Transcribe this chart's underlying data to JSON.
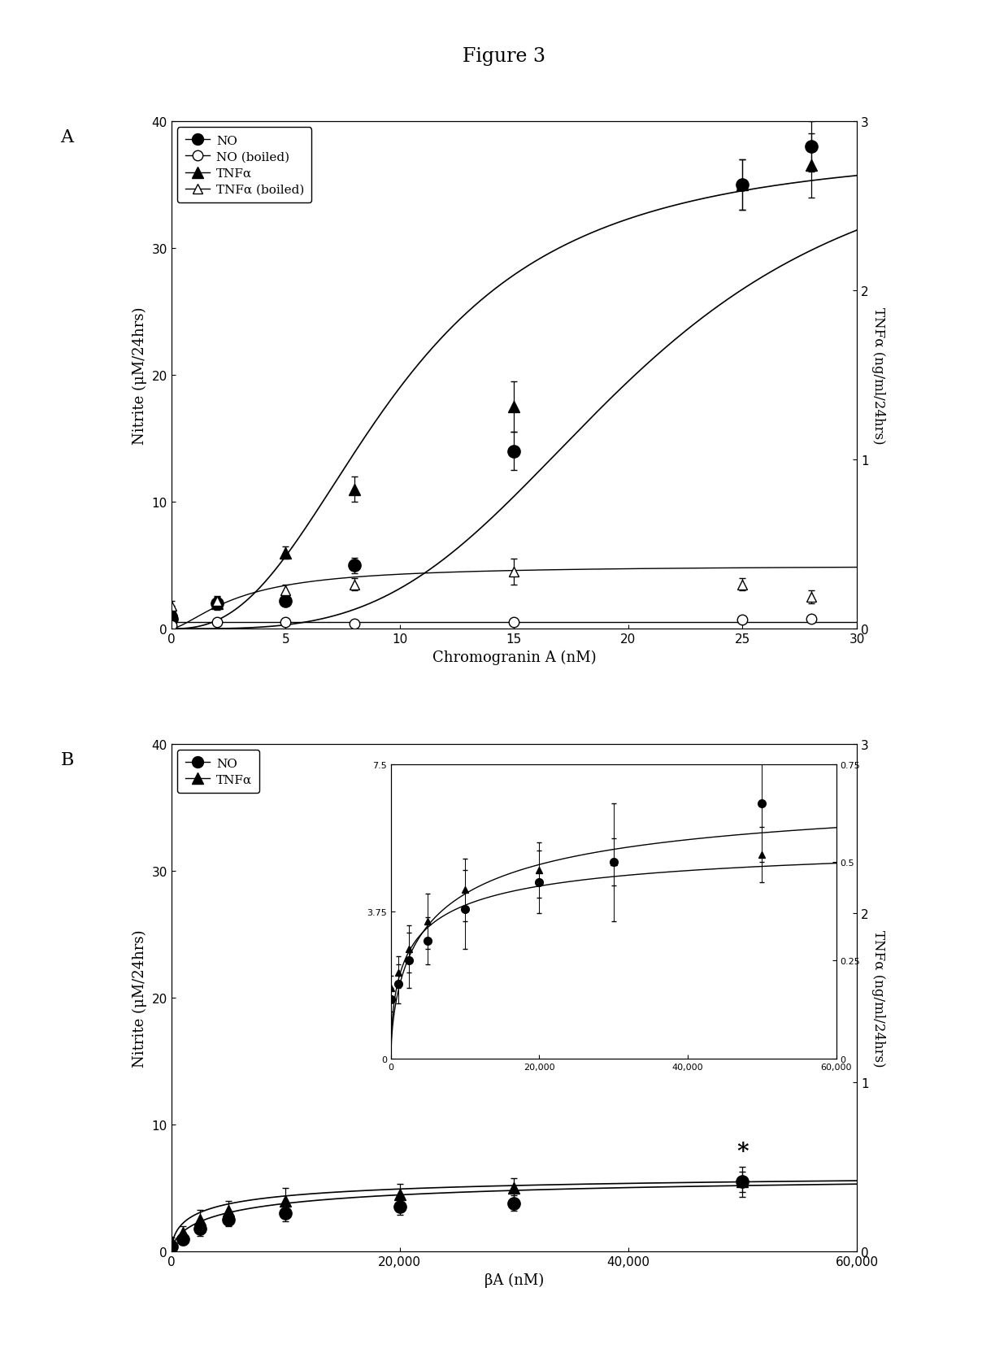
{
  "title": "Figure 3",
  "panel_A": {
    "label": "A",
    "xlabel": "Chromogranin A (nM)",
    "ylabel_left": "Nitrite (μM/24hrs)",
    "ylabel_right": "TNFα (ng/ml/24hrs)",
    "ylim_left": [
      0,
      40
    ],
    "ylim_right": [
      0,
      3
    ],
    "xlim": [
      0,
      30
    ],
    "xticks": [
      0,
      5,
      10,
      15,
      20,
      25,
      30
    ],
    "yticks_left": [
      0,
      10,
      20,
      30,
      40
    ],
    "yticks_right": [
      0,
      1,
      2,
      3
    ],
    "NO": {
      "x": [
        0,
        2,
        5,
        8,
        15,
        25,
        28
      ],
      "y": [
        0.8,
        2.0,
        2.2,
        5.0,
        14.0,
        35.0,
        38.0
      ],
      "yerr": [
        0.3,
        0.4,
        0.4,
        0.6,
        1.5,
        2.0,
        2.0
      ]
    },
    "NO_boiled": {
      "x": [
        0,
        2,
        5,
        8,
        15,
        25,
        28
      ],
      "y": [
        0.3,
        0.5,
        0.5,
        0.4,
        0.5,
        0.7,
        0.8
      ],
      "yerr": [
        0.1,
        0.1,
        0.1,
        0.1,
        0.1,
        0.1,
        0.2
      ]
    },
    "TNFa": {
      "x": [
        0,
        2,
        5,
        8,
        15,
        25,
        28
      ],
      "y_left": [
        1.5,
        2.0,
        6.0,
        11.0,
        17.5,
        35.0,
        36.5
      ],
      "yerr_left": [
        0.3,
        0.5,
        0.5,
        1.0,
        2.0,
        2.0,
        2.5
      ]
    },
    "TNFa_boiled": {
      "x": [
        0,
        2,
        5,
        8,
        15,
        25,
        28
      ],
      "y_left": [
        1.8,
        2.2,
        3.0,
        3.5,
        4.5,
        3.5,
        2.5
      ],
      "yerr_left": [
        0.4,
        0.4,
        0.5,
        0.5,
        1.0,
        0.5,
        0.5
      ]
    },
    "NO_fit": {
      "Vmax": 39.0,
      "Km": 20.0,
      "n": 3.5
    },
    "TNFa_fit_left": {
      "Vmax": 38.0,
      "Km": 10.0,
      "n": 2.5
    },
    "TNFa_boiled_fit_left": {
      "Vmax": 5.0,
      "Km": 3.0,
      "n": 1.5
    },
    "NO_boiled_fit_y": 0.5
  },
  "panel_B": {
    "label": "B",
    "xlabel": "βA (nM)",
    "ylabel_left": "Nitrite (μM/24hrs)",
    "ylabel_right": "TNFα (ng/ml/24hrs)",
    "ylim_left": [
      0,
      40
    ],
    "ylim_right": [
      0,
      3
    ],
    "xlim": [
      0,
      60000
    ],
    "xticks": [
      0,
      20000,
      40000,
      60000
    ],
    "xticklabels": [
      "0",
      "20,000",
      "40,000",
      "60,000"
    ],
    "yticks_left": [
      0,
      10,
      20,
      30,
      40
    ],
    "yticks_right": [
      0,
      1,
      2,
      3
    ],
    "NO": {
      "x": [
        0,
        1000,
        2500,
        5000,
        10000,
        20000,
        30000,
        50000
      ],
      "y": [
        0.4,
        1.0,
        1.8,
        2.5,
        3.0,
        3.5,
        3.8,
        5.5
      ],
      "yerr": [
        0.2,
        0.5,
        0.6,
        0.5,
        0.6,
        0.6,
        0.6,
        1.2
      ]
    },
    "TNFa": {
      "x": [
        0,
        1000,
        2500,
        5000,
        10000,
        20000,
        30000,
        50000
      ],
      "y": [
        0.8,
        1.5,
        2.5,
        3.2,
        4.0,
        4.5,
        5.0,
        5.5
      ],
      "yerr": [
        0.3,
        0.5,
        0.8,
        0.8,
        1.0,
        0.8,
        0.8,
        0.8
      ]
    },
    "NO_fit": {
      "Vmax": 6.5,
      "Km": 6000,
      "n": 0.65
    },
    "TNFa_fit": {
      "Vmax": 6.5,
      "Km": 3000,
      "n": 0.6
    },
    "star_x": 50000,
    "star_y": 7.0,
    "inset": {
      "xlim": [
        0,
        60000
      ],
      "ylim_left": [
        0,
        7.5
      ],
      "ylim_right": [
        0,
        0.75
      ],
      "xticks": [
        0,
        20000,
        40000,
        60000
      ],
      "xticklabels": [
        "0",
        "20,000",
        "40,000",
        "60,000"
      ],
      "yticks_left": [
        0,
        3.75,
        7.5
      ],
      "yticks_right": [
        0,
        0.25,
        0.5,
        0.75
      ],
      "NO": {
        "x": [
          0,
          1000,
          2500,
          5000,
          10000,
          20000,
          30000,
          50000
        ],
        "y": [
          1.5,
          1.9,
          2.5,
          3.0,
          3.8,
          4.5,
          5.0,
          6.5
        ],
        "yerr": [
          0.3,
          0.5,
          0.7,
          0.6,
          1.0,
          0.8,
          1.5,
          1.5
        ]
      },
      "TNFa": {
        "x": [
          0,
          1000,
          2500,
          5000,
          10000,
          20000,
          30000,
          50000
        ],
        "y": [
          0.18,
          0.22,
          0.28,
          0.35,
          0.43,
          0.48,
          0.5,
          0.52
        ],
        "yerr": [
          0.03,
          0.04,
          0.06,
          0.07,
          0.08,
          0.07,
          0.06,
          0.07
        ]
      },
      "NO_fit": {
        "Vmax": 7.2,
        "Km": 6000,
        "n": 0.65
      },
      "TNFa_fit": {
        "Vmax": 0.58,
        "Km": 3000,
        "n": 0.6
      }
    }
  }
}
